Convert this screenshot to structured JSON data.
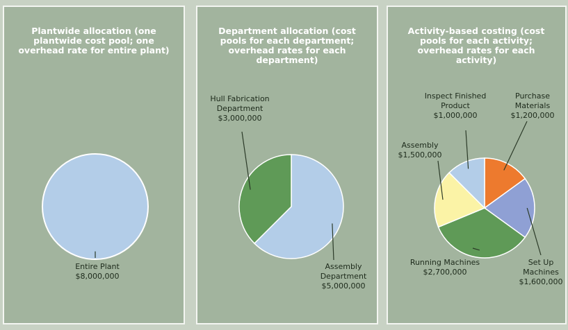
{
  "chart_data": [
    {
      "type": "pie",
      "title": "Plantwide allocation (one plantwide cost pool; one overhead rate for entire plant)",
      "categories": [
        "Entire Plant"
      ],
      "values": [
        8000000
      ],
      "value_labels": [
        "$8,000,000"
      ],
      "colors": [
        "#b3cde8"
      ]
    },
    {
      "type": "pie",
      "title": "Department allocation (cost pools for each department; overhead rates for each department)",
      "categories": [
        "Assembly Department",
        "Hull Fabrication Department"
      ],
      "values": [
        5000000,
        3000000
      ],
      "value_labels": [
        "$5,000,000",
        "$3,000,000"
      ],
      "colors": [
        "#b3cde8",
        "#5f9a57"
      ]
    },
    {
      "type": "pie",
      "title": "Activity-based costing (cost pools for each activity; overhead rates for each activity)",
      "categories": [
        "Purchase Materials",
        "Set Up Machines",
        "Running Machines",
        "Assembly",
        "Inspect Finished Product"
      ],
      "values": [
        1200000,
        1600000,
        2700000,
        1500000,
        1000000
      ],
      "value_labels": [
        "$1,200,000",
        "$1,600,000",
        "$2,700,000",
        "$1,500,000",
        "$1,000,000"
      ],
      "colors": [
        "#ed7a2e",
        "#8fa0d4",
        "#5f9a57",
        "#fbf3a6",
        "#b3cde8"
      ]
    }
  ]
}
